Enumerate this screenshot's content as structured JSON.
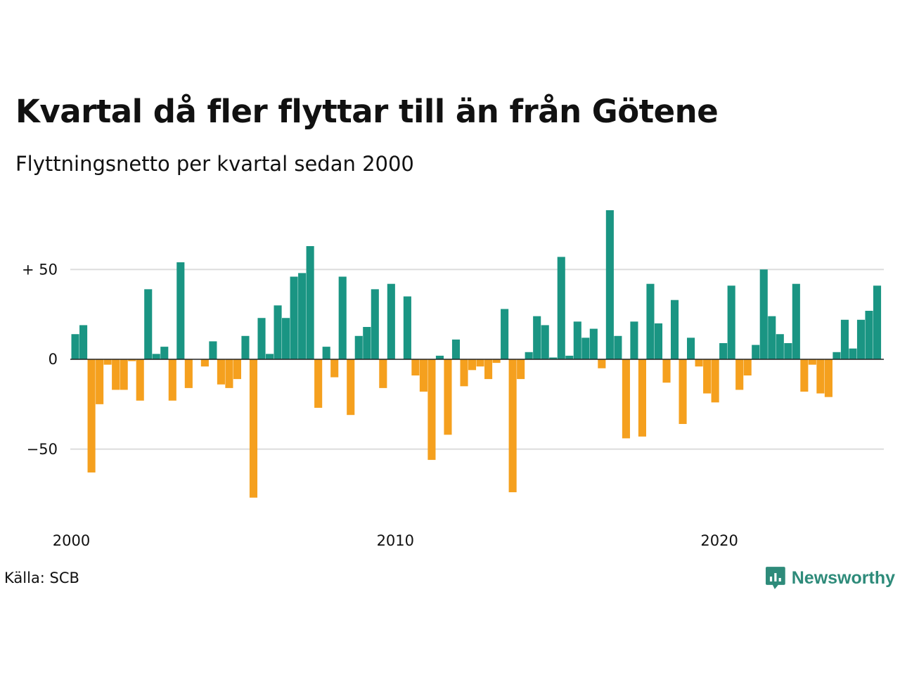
{
  "header": {
    "title": "Kvartal då fler flyttar till än från Götene",
    "subtitle": "Flyttningsnetto per kvartal sedan 2000"
  },
  "footer": {
    "source": "Källa: SCB",
    "brand": "Newsworthy",
    "brand_icon": "chart-speech-bubble-icon"
  },
  "colors": {
    "positive": "#1a9583",
    "negative": "#f5a01e",
    "grid": "#dddddd",
    "brand": "#2e8b7a"
  },
  "chart_data": {
    "type": "bar",
    "title": "Kvartal då fler flyttar till än från Götene",
    "subtitle": "Flyttningsnetto per kvartal sedan 2000",
    "start": "2000 Q1",
    "frequency": "quarter",
    "ylim": [
      -80,
      85
    ],
    "y_ticks": [
      {
        "value": 50,
        "label": "+ 50"
      },
      {
        "value": 0,
        "label": "0"
      },
      {
        "value": -50,
        "label": "−50"
      }
    ],
    "x_ticks": [
      {
        "year": 2000,
        "label": "2000"
      },
      {
        "year": 2010,
        "label": "2010"
      },
      {
        "year": 2020,
        "label": "2020"
      }
    ],
    "grid": true,
    "legend": "none",
    "values": [
      14,
      19,
      -63,
      -25,
      -3,
      -17,
      -17,
      -1,
      -23,
      39,
      3,
      7,
      -23,
      54,
      -16,
      0,
      -4,
      10,
      -14,
      -16,
      -11,
      13,
      -77,
      23,
      3,
      30,
      23,
      46,
      48,
      63,
      -27,
      7,
      -10,
      46,
      -31,
      13,
      18,
      39,
      -16,
      42,
      0,
      35,
      -9,
      -18,
      -56,
      2,
      -42,
      11,
      -15,
      -6,
      -4,
      -11,
      -2,
      28,
      -74,
      -11,
      4,
      24,
      19,
      1,
      57,
      2,
      21,
      12,
      17,
      -5,
      83,
      13,
      -44,
      21,
      -43,
      42,
      20,
      -13,
      33,
      -36,
      12,
      -4,
      -19,
      -24,
      9,
      41,
      -17,
      -9,
      8,
      50,
      24,
      14,
      9,
      42,
      -18,
      -3,
      -19,
      -21,
      4,
      22,
      6,
      22,
      27,
      41
    ]
  }
}
